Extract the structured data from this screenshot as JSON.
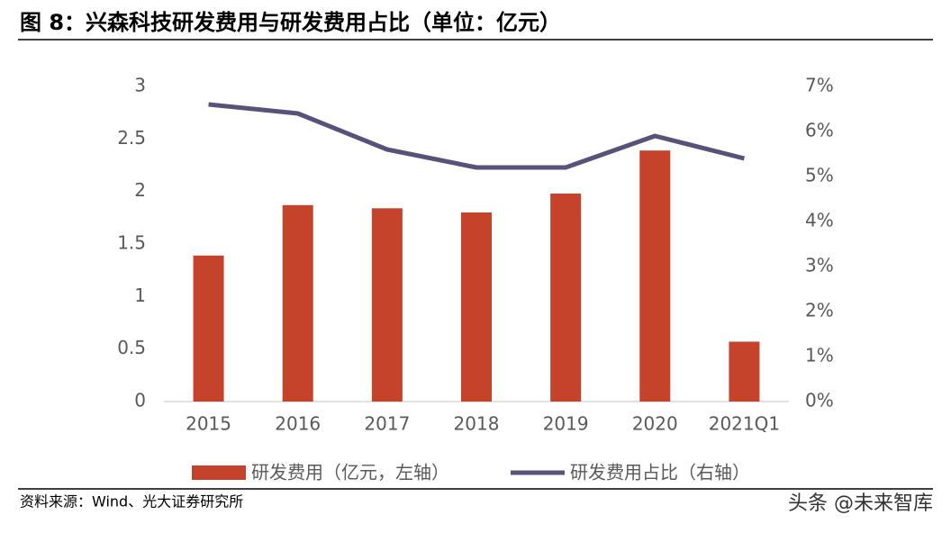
{
  "chart_data": {
    "type": "combo",
    "title": "图 8：兴森科技研发费用与研发费用占比（单位：亿元）",
    "source": "资料来源：Wind、光大证券研究所",
    "watermark": "头条 @未来智库",
    "categories": [
      "2015",
      "2016",
      "2017",
      "2018",
      "2019",
      "2020",
      "2021Q1"
    ],
    "series": [
      {
        "name": "研发费用（亿元，左轴）",
        "type": "bar",
        "color": "#c5432a",
        "values": [
          1.39,
          1.87,
          1.84,
          1.8,
          1.98,
          2.39,
          0.57
        ]
      },
      {
        "name": "研发费用占比（右轴）",
        "type": "line",
        "axis": "y2",
        "color": "#57527a",
        "values": [
          6.6,
          6.4,
          5.6,
          5.2,
          5.2,
          5.9,
          5.4
        ]
      }
    ],
    "ylim": [
      0,
      3
    ],
    "yticks": [
      0,
      0.5,
      1,
      1.5,
      2,
      2.5,
      3
    ],
    "y2lim": [
      0,
      7
    ],
    "y2ticks": [
      {
        "value": 0,
        "label": "0%"
      },
      {
        "value": 1,
        "label": "1%"
      },
      {
        "value": 2,
        "label": "2%"
      },
      {
        "value": 3,
        "label": "3%"
      },
      {
        "value": 4,
        "label": "4%"
      },
      {
        "value": 5,
        "label": "5%"
      },
      {
        "value": 6,
        "label": "6%"
      },
      {
        "value": 7,
        "label": "7%"
      }
    ],
    "legend": "bottom"
  }
}
